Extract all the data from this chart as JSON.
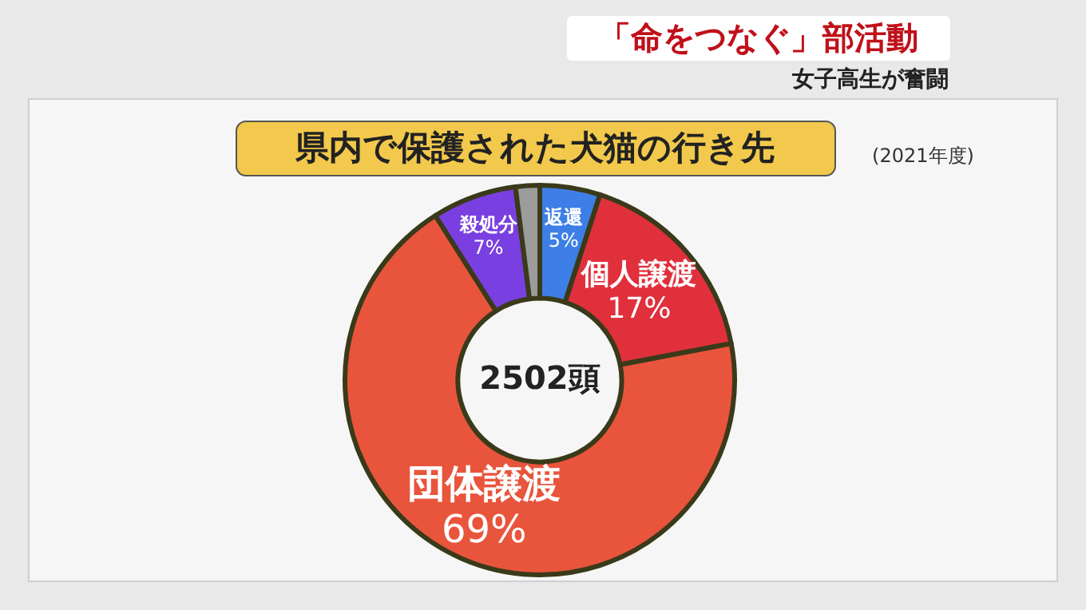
{
  "chart_data": {
    "type": "donut",
    "title": "県内で保護された犬猫の行き先",
    "subtitle": "(2021年度)",
    "categories": [
      "返還",
      "個人譲渡",
      "団体譲渡",
      "殺処分",
      null
    ],
    "values": [
      5,
      17,
      69,
      7,
      2
    ],
    "colors": [
      "#3d7fe6",
      "#e0303c",
      "#e8553c",
      "#7a3fe0",
      "#9c9c9c"
    ],
    "value_labels": [
      "5%",
      "17%",
      "69%",
      "7%",
      null
    ],
    "annotations": [
      "2502頭",
      "「命をつなぐ」部活動",
      "女子高生が奮闘"
    ]
  }
}
